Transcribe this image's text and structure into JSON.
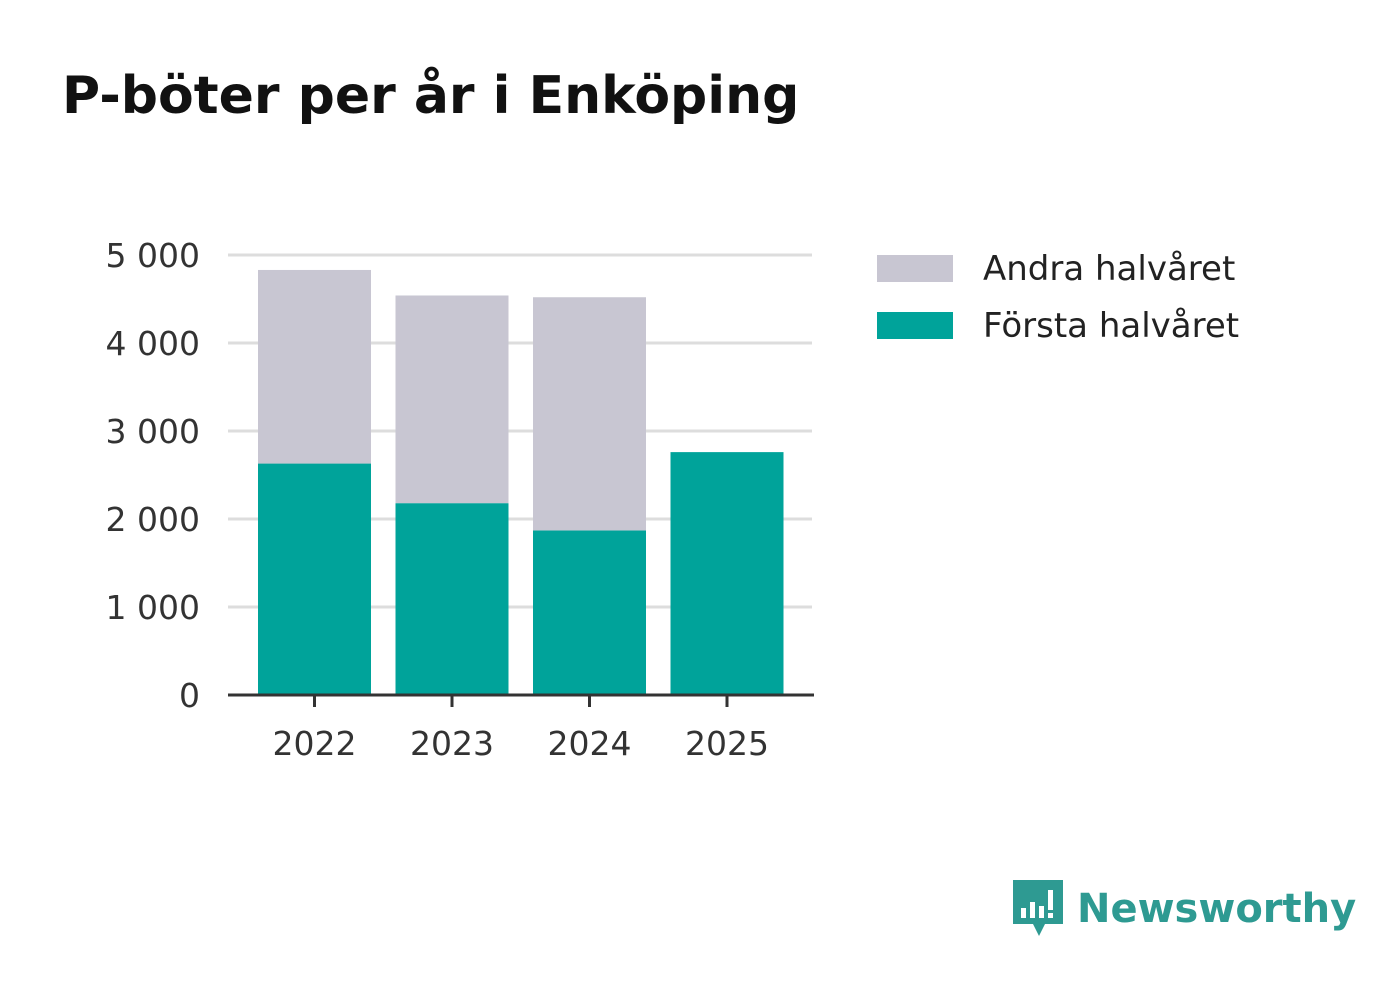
{
  "title": "P-böter per år i Enköping",
  "colors": {
    "first_half": "#00a39a",
    "second_half": "#c8c6d2",
    "grid": "#dddddd",
    "axis": "#333333",
    "brand": "#2e9a92"
  },
  "legend": {
    "items": [
      {
        "label": "Andra halvåret",
        "color_key": "second_half"
      },
      {
        "label": "Första halvåret",
        "color_key": "first_half"
      }
    ]
  },
  "brand": {
    "name": "Newsworthy",
    "icon": "newsworthy-logo-icon"
  },
  "chart_data": {
    "type": "bar",
    "stacked": true,
    "title": "P-böter per år i Enköping",
    "categories": [
      "2022",
      "2023",
      "2024",
      "2025"
    ],
    "series": [
      {
        "name": "Första halvåret",
        "values": [
          2630,
          2180,
          1870,
          2760
        ]
      },
      {
        "name": "Andra halvåret",
        "values": [
          2200,
          2360,
          2650,
          0
        ]
      }
    ],
    "ylim": [
      0,
      5000
    ],
    "yticks": [
      0,
      1000,
      2000,
      3000,
      4000,
      5000
    ],
    "ytick_labels": [
      "0",
      "1 000",
      "2 000",
      "3 000",
      "4 000",
      "5 000"
    ],
    "xlabel": "",
    "ylabel": "",
    "grid": true,
    "legend_position": "right"
  }
}
